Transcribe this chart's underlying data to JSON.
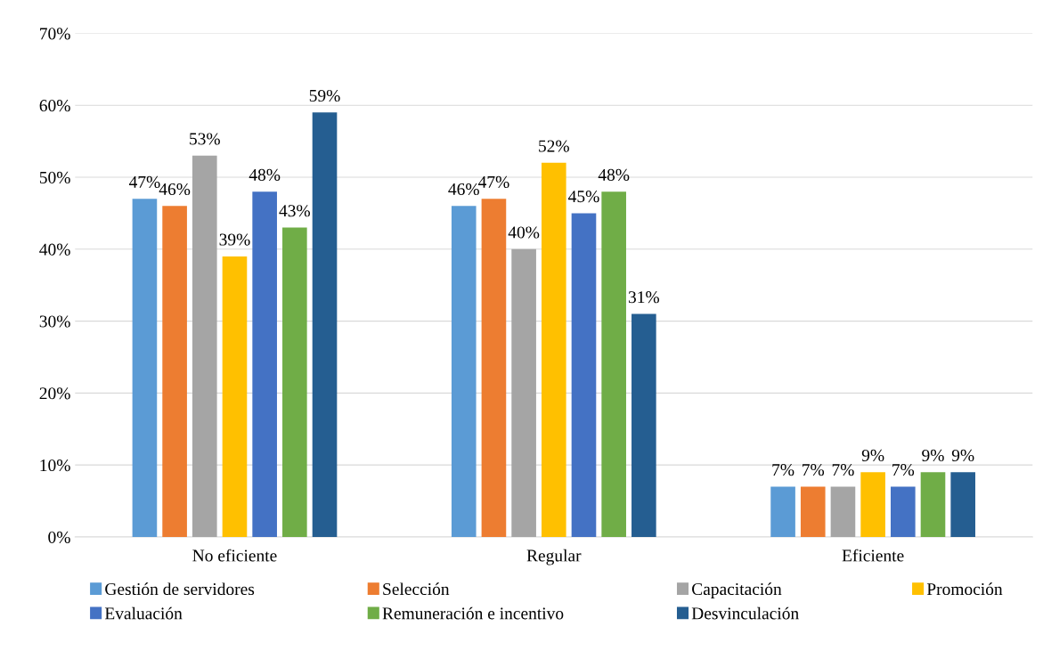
{
  "chart_data": {
    "type": "bar",
    "categories": [
      "No eficiente",
      "Regular",
      "Eficiente"
    ],
    "series": [
      {
        "name": "Gestión de servidores",
        "color": "#5b9bd5",
        "values": [
          47,
          46,
          7
        ],
        "value_labels": [
          "47%",
          "46%",
          "7%"
        ]
      },
      {
        "name": "Selección",
        "color": "#ed7d31",
        "values": [
          46,
          47,
          7
        ],
        "value_labels": [
          "46%",
          "47%",
          "7%"
        ]
      },
      {
        "name": "Capacitación",
        "color": "#a5a5a5",
        "values": [
          53,
          40,
          7
        ],
        "value_labels": [
          "53%",
          "40%",
          "7%"
        ]
      },
      {
        "name": "Promoción",
        "color": "#ffc000",
        "values": [
          39,
          52,
          9
        ],
        "value_labels": [
          "39%",
          "52%",
          "9%"
        ]
      },
      {
        "name": "Evaluación",
        "color": "#4472c4",
        "values": [
          48,
          45,
          7
        ],
        "value_labels": [
          "48%",
          "45%",
          "7%"
        ]
      },
      {
        "name": "Remuneración e incentivo",
        "color": "#70ad47",
        "values": [
          43,
          48,
          9
        ],
        "value_labels": [
          "43%",
          "48%",
          "9%"
        ]
      },
      {
        "name": "Desvinculación",
        "color": "#255e91",
        "values": [
          59,
          31,
          9
        ],
        "value_labels": [
          "59%",
          "31%",
          "9%"
        ]
      }
    ],
    "ylim": [
      0,
      70
    ],
    "yticks": [
      {
        "value": 0,
        "label": "0%"
      },
      {
        "value": 10,
        "label": "10%"
      },
      {
        "value": 20,
        "label": "20%"
      },
      {
        "value": 30,
        "label": "30%"
      },
      {
        "value": 40,
        "label": "40%"
      },
      {
        "value": 50,
        "label": "50%"
      },
      {
        "value": 60,
        "label": "60%"
      },
      {
        "value": 70,
        "label": "70%"
      }
    ],
    "grid": "y",
    "legend": "bottom"
  }
}
